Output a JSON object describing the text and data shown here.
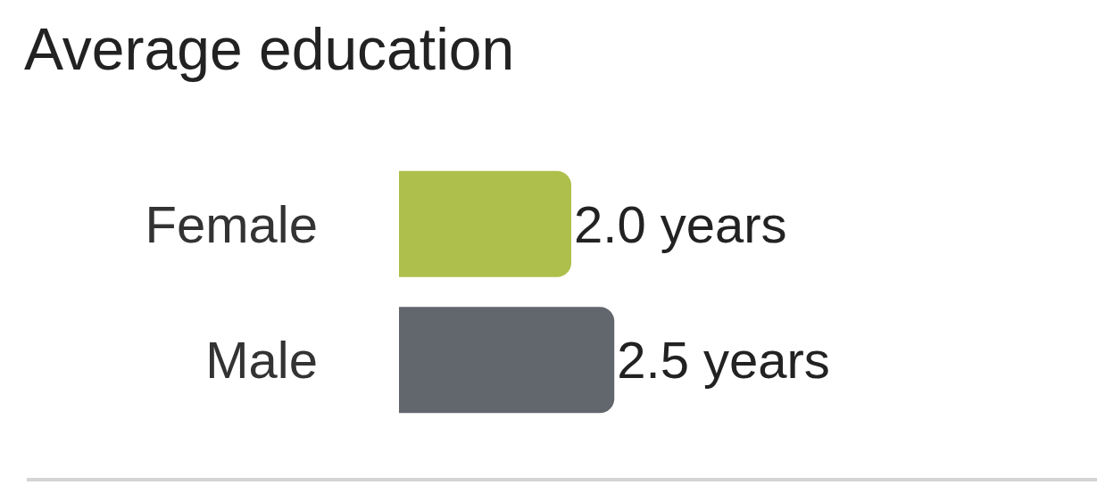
{
  "chart_data": {
    "type": "bar",
    "orientation": "horizontal",
    "title": "Average education",
    "categories": [
      "Female",
      "Male"
    ],
    "values": [
      2.0,
      2.5
    ],
    "colors": [
      "#afbf4b",
      "#62666d"
    ],
    "value_labels": [
      "2.0 years",
      "2.5 years"
    ]
  }
}
